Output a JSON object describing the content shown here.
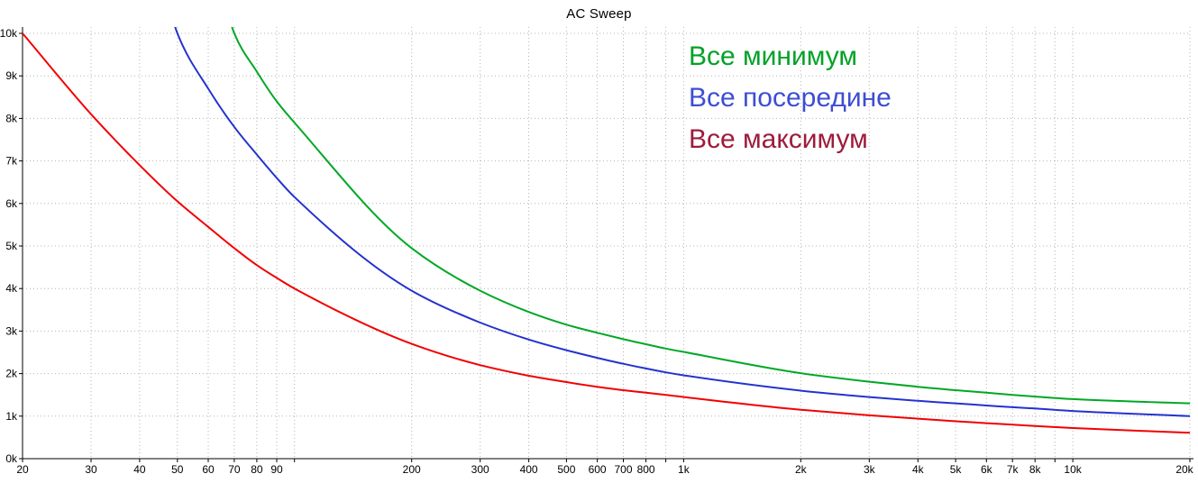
{
  "title": "AC Sweep",
  "legend": {
    "position": "top-right",
    "items": [
      {
        "label": "Все минимум",
        "color": "#00A226"
      },
      {
        "label": "Все посередине",
        "color": "#3D4ED2"
      },
      {
        "label": "Все максимум",
        "color": "#9E1B3C"
      }
    ]
  },
  "chart_data": {
    "type": "line",
    "title": "AC Sweep",
    "x_scale": "log",
    "xlim": [
      20,
      20000
    ],
    "ylim": [
      0,
      10000
    ],
    "grid": true,
    "background": "#FFFFFF",
    "grid_color": "#B4B4B4",
    "axis_color": "#000000",
    "legend_position": "top-right",
    "x_ticks": [
      {
        "v": 20,
        "label": "20"
      },
      {
        "v": 30,
        "label": "30"
      },
      {
        "v": 40,
        "label": "40"
      },
      {
        "v": 50,
        "label": "50"
      },
      {
        "v": 60,
        "label": "60"
      },
      {
        "v": 70,
        "label": "70"
      },
      {
        "v": 80,
        "label": "80"
      },
      {
        "v": 90,
        "label": "90"
      },
      {
        "v": 100,
        "label": ""
      },
      {
        "v": 200,
        "label": "200"
      },
      {
        "v": 300,
        "label": "300"
      },
      {
        "v": 400,
        "label": "400"
      },
      {
        "v": 500,
        "label": "500"
      },
      {
        "v": 600,
        "label": "600"
      },
      {
        "v": 700,
        "label": "700"
      },
      {
        "v": 800,
        "label": "800"
      },
      {
        "v": 900,
        "label": ""
      },
      {
        "v": 1000,
        "label": "1k"
      },
      {
        "v": 2000,
        "label": "2k"
      },
      {
        "v": 3000,
        "label": "3k"
      },
      {
        "v": 4000,
        "label": "4k"
      },
      {
        "v": 5000,
        "label": "5k"
      },
      {
        "v": 6000,
        "label": "6k"
      },
      {
        "v": 7000,
        "label": "7k"
      },
      {
        "v": 8000,
        "label": "8k"
      },
      {
        "v": 9000,
        "label": ""
      },
      {
        "v": 10000,
        "label": "10k"
      },
      {
        "v": 20000,
        "label": "20k"
      }
    ],
    "y_ticks": [
      {
        "v": 0,
        "label": "0k"
      },
      {
        "v": 1000,
        "label": "1k"
      },
      {
        "v": 2000,
        "label": "2k"
      },
      {
        "v": 3000,
        "label": "3k"
      },
      {
        "v": 4000,
        "label": "4k"
      },
      {
        "v": 5000,
        "label": "5k"
      },
      {
        "v": 6000,
        "label": "6k"
      },
      {
        "v": 7000,
        "label": "7k"
      },
      {
        "v": 8000,
        "label": "8k"
      },
      {
        "v": 9000,
        "label": "9k"
      },
      {
        "v": 10000,
        "label": "10k"
      }
    ],
    "series": [
      {
        "name": "Все минимум",
        "color": "#00A825",
        "points": [
          [
            62,
            12000
          ],
          [
            70,
            10000
          ],
          [
            80,
            9100
          ],
          [
            90,
            8400
          ],
          [
            100,
            7900
          ],
          [
            200,
            4950
          ],
          [
            300,
            3950
          ],
          [
            400,
            3450
          ],
          [
            500,
            3150
          ],
          [
            600,
            2960
          ],
          [
            700,
            2810
          ],
          [
            800,
            2690
          ],
          [
            900,
            2590
          ],
          [
            1000,
            2510
          ],
          [
            2000,
            2010
          ],
          [
            3000,
            1810
          ],
          [
            4000,
            1690
          ],
          [
            5000,
            1610
          ],
          [
            6000,
            1550
          ],
          [
            7000,
            1500
          ],
          [
            8000,
            1460
          ],
          [
            10000,
            1400
          ],
          [
            20000,
            1300
          ]
        ]
      },
      {
        "name": "Все посередине",
        "color": "#2432CF",
        "points": [
          [
            44,
            12000
          ],
          [
            50,
            10000
          ],
          [
            60,
            8700
          ],
          [
            70,
            7800
          ],
          [
            80,
            7150
          ],
          [
            90,
            6600
          ],
          [
            100,
            6150
          ],
          [
            200,
            3950
          ],
          [
            300,
            3200
          ],
          [
            400,
            2800
          ],
          [
            500,
            2550
          ],
          [
            600,
            2370
          ],
          [
            700,
            2230
          ],
          [
            800,
            2120
          ],
          [
            900,
            2030
          ],
          [
            1000,
            1960
          ],
          [
            2000,
            1600
          ],
          [
            3000,
            1450
          ],
          [
            4000,
            1360
          ],
          [
            5000,
            1300
          ],
          [
            6000,
            1250
          ],
          [
            7000,
            1210
          ],
          [
            8000,
            1180
          ],
          [
            10000,
            1120
          ],
          [
            20000,
            1000
          ]
        ]
      },
      {
        "name": "Все максимум",
        "color": "#F20000",
        "points": [
          [
            20,
            10000
          ],
          [
            30,
            8100
          ],
          [
            40,
            6900
          ],
          [
            50,
            6050
          ],
          [
            60,
            5450
          ],
          [
            70,
            4950
          ],
          [
            80,
            4550
          ],
          [
            90,
            4250
          ],
          [
            100,
            4000
          ],
          [
            200,
            2700
          ],
          [
            300,
            2200
          ],
          [
            400,
            1950
          ],
          [
            500,
            1800
          ],
          [
            600,
            1690
          ],
          [
            700,
            1610
          ],
          [
            800,
            1550
          ],
          [
            900,
            1500
          ],
          [
            1000,
            1450
          ],
          [
            2000,
            1150
          ],
          [
            3000,
            1020
          ],
          [
            4000,
            940
          ],
          [
            5000,
            880
          ],
          [
            6000,
            835
          ],
          [
            7000,
            800
          ],
          [
            8000,
            770
          ],
          [
            10000,
            720
          ],
          [
            20000,
            610
          ]
        ]
      }
    ]
  }
}
